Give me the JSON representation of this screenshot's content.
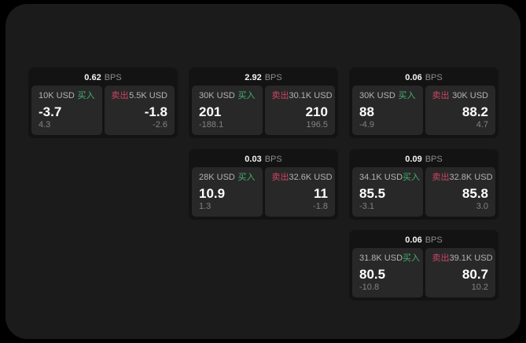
{
  "colors": {
    "background": "#000000",
    "panel": "#1b1b1b",
    "card": "#131313",
    "tile": "#282828",
    "buy_green": "#43b16d",
    "sell_red": "#cc4466",
    "text_primary": "#ffffff",
    "text_muted": "#8d8d8d"
  },
  "cards": [
    {
      "bps_value": "0.62",
      "bps_unit": "BPS",
      "buy": {
        "amount": "10K USD",
        "side": "买入",
        "price": "-3.7",
        "delta": "4.3"
      },
      "sell": {
        "side": "卖出",
        "amount": "5.5K USD",
        "price": "-1.8",
        "delta": "-2.6"
      }
    },
    {
      "bps_value": "2.92",
      "bps_unit": "BPS",
      "buy": {
        "amount": "30K USD",
        "side": "买入",
        "price": "201",
        "delta": "-188.1"
      },
      "sell": {
        "side": "卖出",
        "amount": "30.1K USD",
        "price": "210",
        "delta": "196.5"
      }
    },
    {
      "bps_value": "0.06",
      "bps_unit": "BPS",
      "buy": {
        "amount": "30K USD",
        "side": "买入",
        "price": "88",
        "delta": "-4.9"
      },
      "sell": {
        "side": "卖出",
        "amount": "30K USD",
        "price": "88.2",
        "delta": "4.7"
      }
    },
    {
      "bps_value": "0.03",
      "bps_unit": "BPS",
      "buy": {
        "amount": "28K USD",
        "side": "买入",
        "price": "10.9",
        "delta": "1.3"
      },
      "sell": {
        "side": "卖出",
        "amount": "32.6K USD",
        "price": "11",
        "delta": "-1.8"
      }
    },
    {
      "bps_value": "0.09",
      "bps_unit": "BPS",
      "buy": {
        "amount": "34.1K USD",
        "side": "买入",
        "price": "85.5",
        "delta": "-3.1"
      },
      "sell": {
        "side": "卖出",
        "amount": "32.8K USD",
        "price": "85.8",
        "delta": "3.0"
      }
    },
    {
      "bps_value": "0.06",
      "bps_unit": "BPS",
      "buy": {
        "amount": "31.8K USD",
        "side": "买入",
        "price": "80.5",
        "delta": "-10.8"
      },
      "sell": {
        "side": "卖出",
        "amount": "39.1K USD",
        "price": "80.7",
        "delta": "10.2"
      }
    }
  ]
}
